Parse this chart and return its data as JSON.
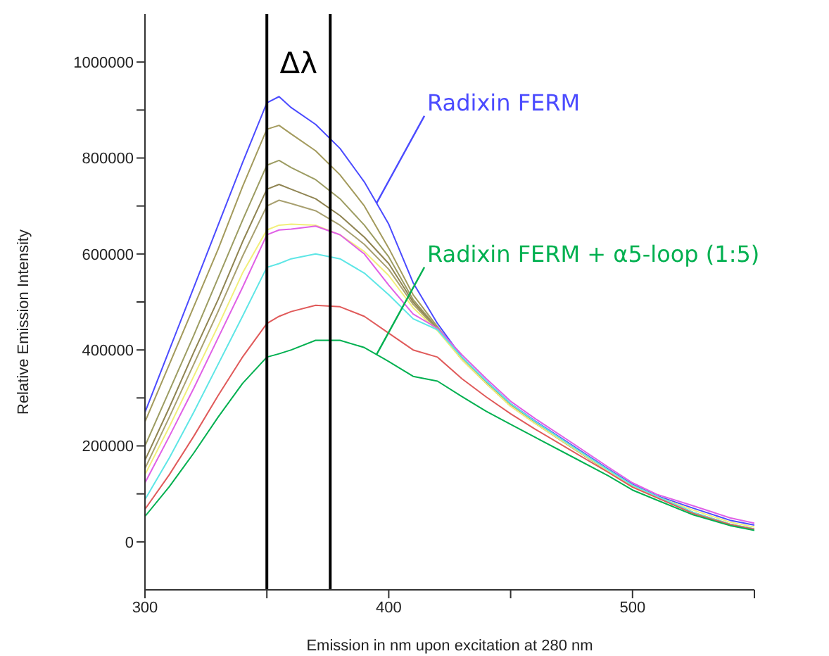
{
  "chart_data": {
    "type": "line",
    "xlabel": "Emission in nm upon excitation at 280 nm",
    "ylabel": "Relative Emission Intensity",
    "x": [
      300,
      310,
      320,
      330,
      340,
      350,
      355,
      360,
      370,
      380,
      390,
      400,
      410,
      420,
      430,
      440,
      450,
      460,
      475,
      490,
      500,
      510,
      525,
      540,
      550
    ],
    "series": [
      {
        "name": "Radixin FERM",
        "color": "#4b4bff",
        "values": [
          270000,
          400000,
          530000,
          660000,
          790000,
          915000,
          928000,
          905000,
          870000,
          820000,
          750000,
          662000,
          540000,
          455000,
          385000,
          335000,
          288000,
          252000,
          202000,
          152000,
          120000,
          96000,
          70000,
          45000,
          35000
        ]
      },
      {
        "color": "#a39a5c",
        "values": [
          250000,
          370000,
          490000,
          610000,
          740000,
          860000,
          868000,
          850000,
          815000,
          765000,
          700000,
          612000,
          515000,
          448000,
          383000,
          333000,
          286000,
          250000,
          200000,
          150000,
          118000,
          95000,
          61000,
          37000,
          27000
        ]
      },
      {
        "color": "#9c9c62",
        "values": [
          200000,
          315000,
          430000,
          550000,
          670000,
          785000,
          795000,
          780000,
          755000,
          715000,
          660000,
          594000,
          505000,
          445000,
          382000,
          332000,
          285000,
          249000,
          199000,
          149000,
          117000,
          94000,
          60000,
          36000,
          26000
        ]
      },
      {
        "color": "#8f8452",
        "values": [
          170000,
          280000,
          395000,
          505000,
          625000,
          735000,
          745000,
          735000,
          715000,
          680000,
          635000,
          580000,
          500000,
          443000,
          381000,
          331000,
          284000,
          248000,
          198000,
          148000,
          116000,
          93000,
          60000,
          36000,
          26000
        ]
      },
      {
        "color": "#a8a070",
        "values": [
          153000,
          260000,
          370000,
          480000,
          595000,
          700000,
          712000,
          705000,
          690000,
          660000,
          620000,
          568000,
          495000,
          442000,
          380000,
          330000,
          283000,
          247000,
          197000,
          147000,
          116000,
          93000,
          59000,
          35000,
          26000
        ]
      },
      {
        "color": "#f2ef7a",
        "values": [
          140000,
          240000,
          345000,
          450000,
          560000,
          650000,
          660000,
          662000,
          660000,
          640000,
          605000,
          555000,
          488000,
          440000,
          380000,
          330000,
          283000,
          247000,
          198000,
          148000,
          117000,
          94000,
          66000,
          41000,
          31000
        ]
      },
      {
        "color": "#e060e6",
        "values": [
          123000,
          220000,
          320000,
          425000,
          530000,
          640000,
          650000,
          652000,
          658000,
          640000,
          600000,
          535000,
          475000,
          445000,
          390000,
          340000,
          293000,
          257000,
          207000,
          156000,
          123000,
          99000,
          75000,
          50000,
          39000
        ]
      },
      {
        "color": "#5ee6e6",
        "values": [
          88000,
          175000,
          270000,
          370000,
          470000,
          572000,
          580000,
          590000,
          600000,
          590000,
          560000,
          515000,
          465000,
          442000,
          385000,
          335000,
          288000,
          251000,
          200000,
          150000,
          118000,
          95000,
          61000,
          37000,
          27000
        ]
      },
      {
        "color": "#e05a5a",
        "values": [
          68000,
          140000,
          220000,
          305000,
          385000,
          455000,
          470000,
          480000,
          493000,
          490000,
          470000,
          435000,
          400000,
          385000,
          340000,
          302000,
          267000,
          235000,
          190000,
          145000,
          114000,
          92000,
          59000,
          36000,
          26000
        ]
      },
      {
        "name": "Radixin FERM + α5-loop (1:5)",
        "color": "#00b050",
        "values": [
          53000,
          115000,
          185000,
          260000,
          330000,
          385000,
          392000,
          400000,
          420000,
          420000,
          405000,
          376000,
          345000,
          335000,
          303000,
          272000,
          245000,
          218000,
          178000,
          138000,
          108000,
          87000,
          56000,
          34000,
          24000
        ]
      }
    ],
    "xlim": [
      300,
      550
    ],
    "xticks": [
      300,
      {
        "value": 350,
        "label": null
      },
      400,
      {
        "value": 450,
        "label": null
      },
      500,
      {
        "value": 550,
        "label": null
      }
    ],
    "ylim": [
      -100000,
      1100000
    ],
    "yticks": [
      0,
      {
        "value": 100000,
        "label": null
      },
      200000,
      {
        "value": 300000,
        "label": null
      },
      400000,
      {
        "value": 500000,
        "label": null
      },
      600000,
      {
        "value": 700000,
        "label": null
      },
      800000,
      {
        "value": 900000,
        "label": null
      },
      1000000
    ],
    "ref_lines": [
      {
        "axis": "x",
        "value": 350,
        "color": "#000000"
      },
      {
        "axis": "x",
        "value": 376,
        "color": "#000000"
      }
    ],
    "annotations": [
      "Δλ"
    ],
    "grid": false,
    "legend": false,
    "marker": "none",
    "line_style": "solid"
  }
}
